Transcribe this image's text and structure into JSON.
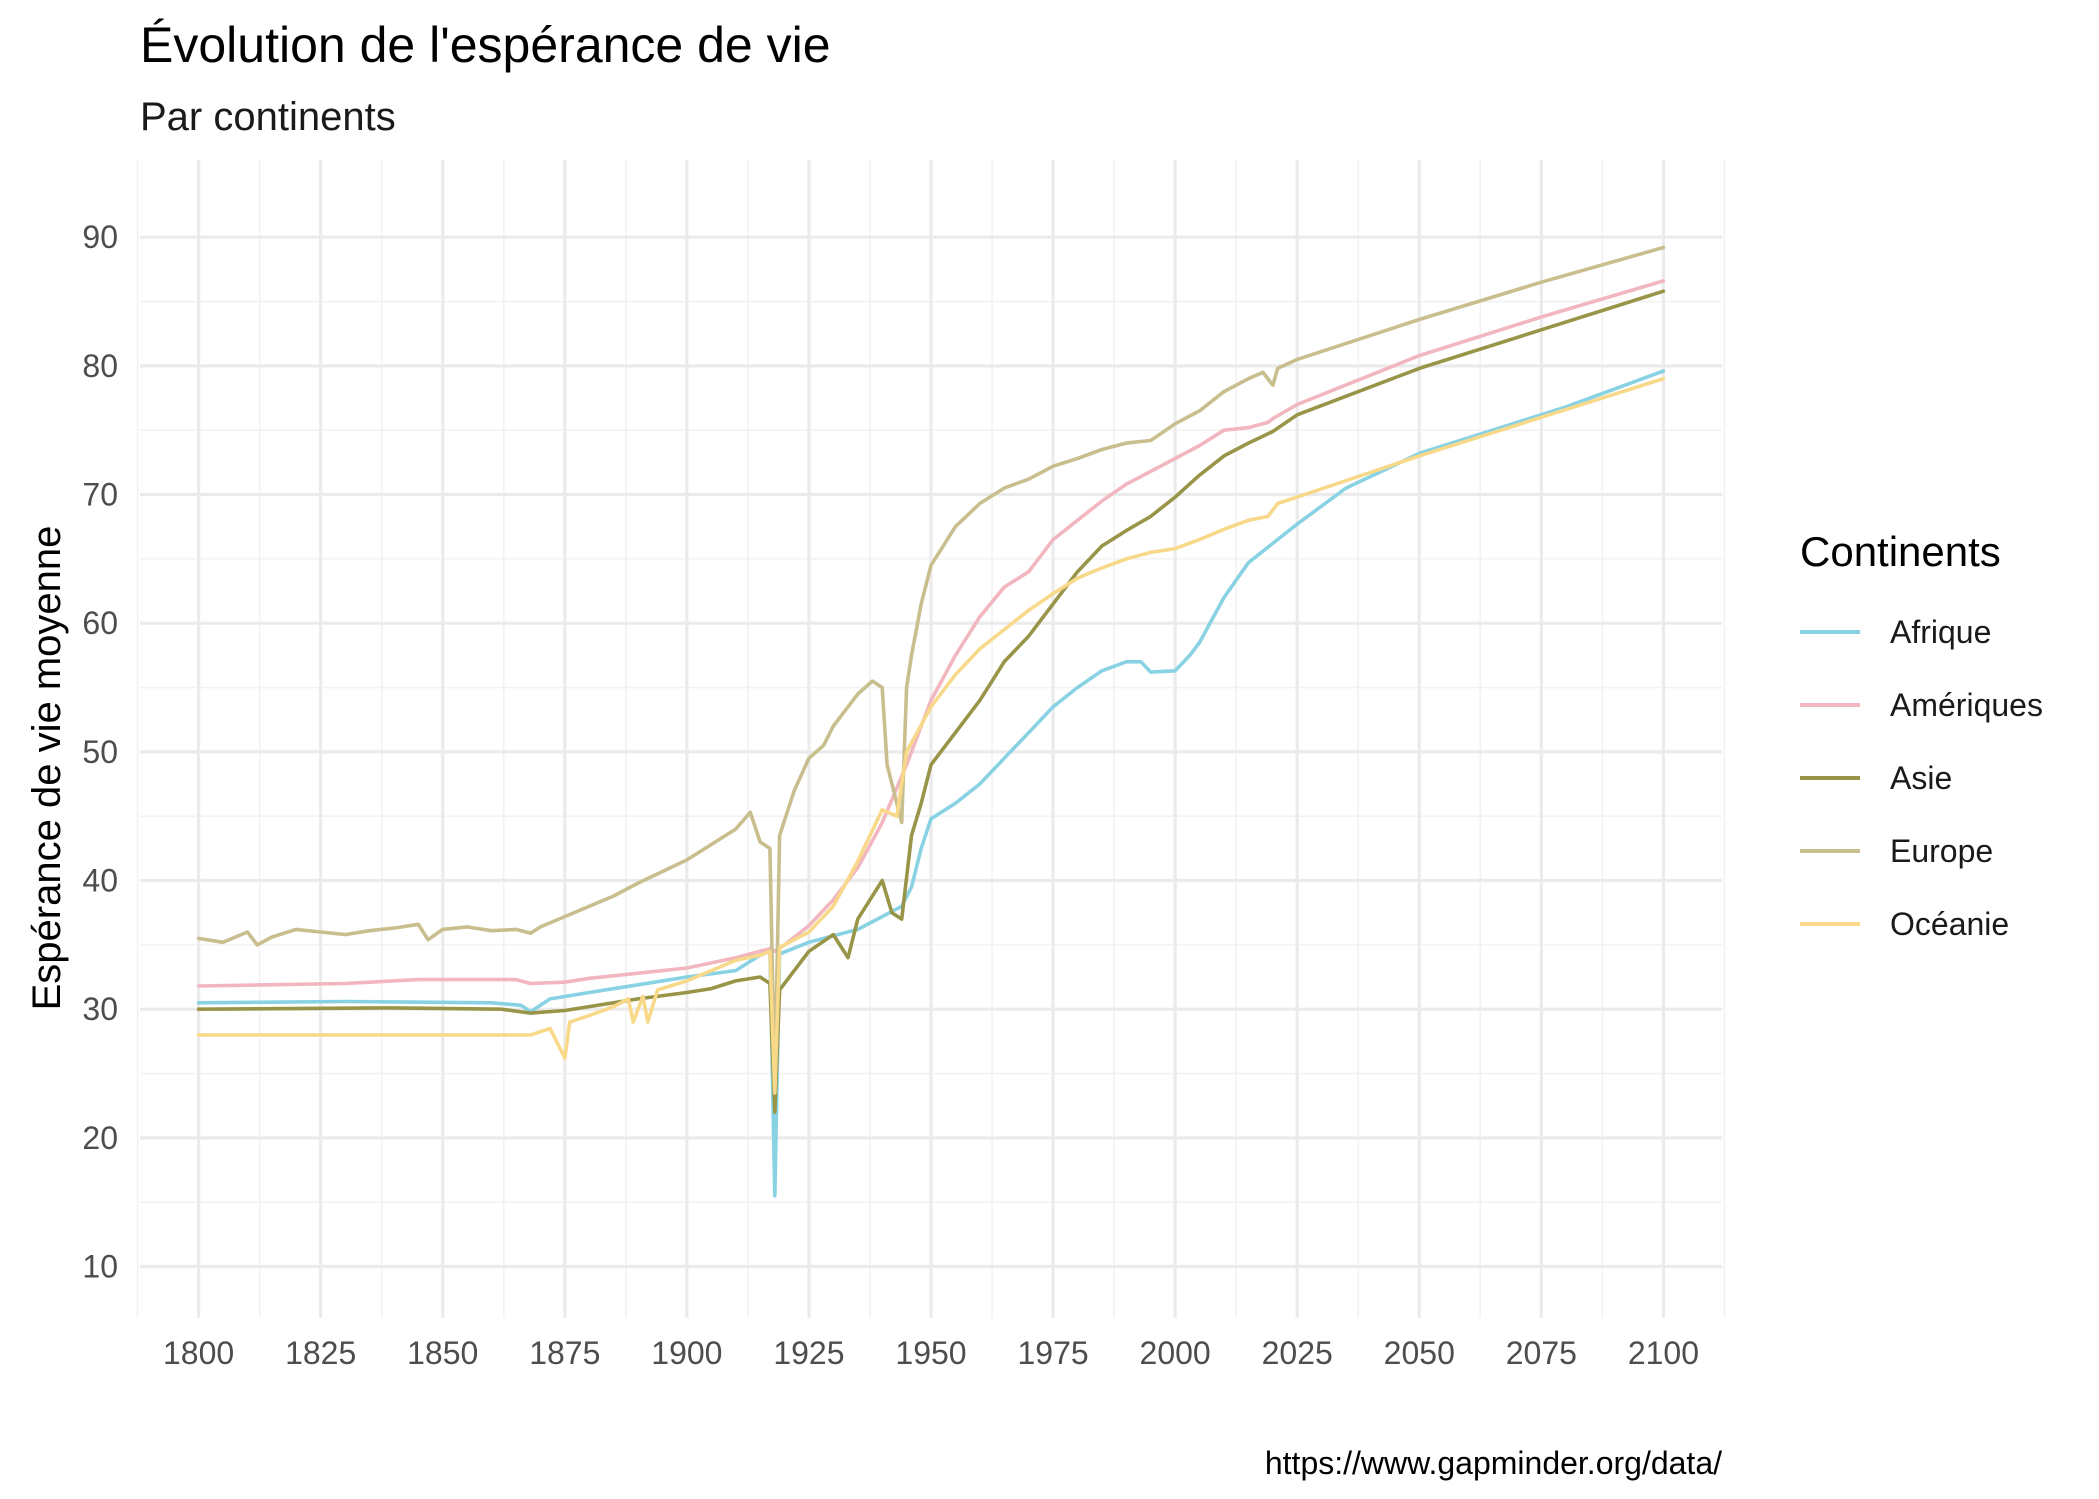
{
  "chart_data": {
    "type": "line",
    "title": "Évolution de l'espérance de vie",
    "subtitle": "Par continents",
    "xlabel": "",
    "ylabel": "Espérance de vie moyenne",
    "caption": "https://www.gapminder.org/data/",
    "xlim": [
      1788,
      2112
    ],
    "ylim": [
      6,
      96
    ],
    "x_ticks": [
      1800,
      1825,
      1850,
      1875,
      1900,
      1925,
      1950,
      1975,
      2000,
      2025,
      2050,
      2075,
      2100
    ],
    "y_ticks": [
      10,
      20,
      30,
      40,
      50,
      60,
      70,
      80,
      90
    ],
    "grid": true,
    "legend": {
      "title": "Continents",
      "position": "right"
    },
    "series": [
      {
        "name": "Afrique",
        "color": "#89D2E3",
        "points": [
          [
            1800,
            30.5
          ],
          [
            1830,
            30.6
          ],
          [
            1860,
            30.5
          ],
          [
            1866,
            30.3
          ],
          [
            1868,
            29.8
          ],
          [
            1872,
            30.8
          ],
          [
            1880,
            31.3
          ],
          [
            1890,
            31.9
          ],
          [
            1900,
            32.5
          ],
          [
            1910,
            33.0
          ],
          [
            1915,
            34.2
          ],
          [
            1917,
            34.5
          ],
          [
            1918,
            15.5
          ],
          [
            1919,
            34.3
          ],
          [
            1925,
            35.2
          ],
          [
            1935,
            36.2
          ],
          [
            1940,
            37.2
          ],
          [
            1944,
            38.0
          ],
          [
            1946,
            39.5
          ],
          [
            1948,
            42.5
          ],
          [
            1950,
            44.8
          ],
          [
            1955,
            46.0
          ],
          [
            1960,
            47.5
          ],
          [
            1965,
            49.5
          ],
          [
            1970,
            51.5
          ],
          [
            1975,
            53.5
          ],
          [
            1980,
            55.0
          ],
          [
            1985,
            56.3
          ],
          [
            1990,
            57.0
          ],
          [
            1993,
            57.0
          ],
          [
            1995,
            56.2
          ],
          [
            2000,
            56.3
          ],
          [
            2003,
            57.5
          ],
          [
            2005,
            58.5
          ],
          [
            2010,
            62.0
          ],
          [
            2015,
            64.7
          ],
          [
            2020,
            66.2
          ],
          [
            2025,
            67.7
          ],
          [
            2035,
            70.5
          ],
          [
            2050,
            73.2
          ],
          [
            2065,
            75.0
          ],
          [
            2080,
            76.8
          ],
          [
            2100,
            79.6
          ]
        ]
      },
      {
        "name": "Amériques",
        "color": "#F2B6BF",
        "points": [
          [
            1800,
            31.8
          ],
          [
            1830,
            32.0
          ],
          [
            1845,
            32.3
          ],
          [
            1865,
            32.3
          ],
          [
            1868,
            32.0
          ],
          [
            1875,
            32.1
          ],
          [
            1880,
            32.4
          ],
          [
            1890,
            32.8
          ],
          [
            1900,
            33.2
          ],
          [
            1910,
            34.0
          ],
          [
            1917,
            34.7
          ],
          [
            1918,
            34.5
          ],
          [
            1920,
            35.0
          ],
          [
            1925,
            36.5
          ],
          [
            1930,
            38.5
          ],
          [
            1935,
            41.0
          ],
          [
            1940,
            44.5
          ],
          [
            1945,
            49.0
          ],
          [
            1950,
            54.0
          ],
          [
            1955,
            57.5
          ],
          [
            1960,
            60.5
          ],
          [
            1965,
            62.8
          ],
          [
            1970,
            64.0
          ],
          [
            1975,
            66.5
          ],
          [
            1980,
            68.0
          ],
          [
            1985,
            69.5
          ],
          [
            1990,
            70.8
          ],
          [
            1995,
            71.8
          ],
          [
            2000,
            72.8
          ],
          [
            2005,
            73.8
          ],
          [
            2010,
            75.0
          ],
          [
            2015,
            75.2
          ],
          [
            2019,
            75.6
          ],
          [
            2020,
            75.9
          ],
          [
            2025,
            77.0
          ],
          [
            2050,
            80.8
          ],
          [
            2075,
            83.8
          ],
          [
            2100,
            86.6
          ]
        ]
      },
      {
        "name": "Asie",
        "color": "#999548",
        "points": [
          [
            1800,
            30.0
          ],
          [
            1840,
            30.1
          ],
          [
            1862,
            30.0
          ],
          [
            1868,
            29.7
          ],
          [
            1875,
            29.9
          ],
          [
            1880,
            30.2
          ],
          [
            1890,
            30.8
          ],
          [
            1900,
            31.3
          ],
          [
            1905,
            31.6
          ],
          [
            1910,
            32.2
          ],
          [
            1915,
            32.5
          ],
          [
            1917,
            32.0
          ],
          [
            1918,
            22.0
          ],
          [
            1919,
            31.5
          ],
          [
            1925,
            34.5
          ],
          [
            1930,
            35.8
          ],
          [
            1933,
            34.0
          ],
          [
            1935,
            37.0
          ],
          [
            1940,
            40.0
          ],
          [
            1942,
            37.5
          ],
          [
            1944,
            37.0
          ],
          [
            1946,
            43.5
          ],
          [
            1948,
            46.0
          ],
          [
            1950,
            49.0
          ],
          [
            1955,
            51.5
          ],
          [
            1960,
            54.0
          ],
          [
            1965,
            57.0
          ],
          [
            1970,
            59.0
          ],
          [
            1975,
            61.5
          ],
          [
            1980,
            64.0
          ],
          [
            1985,
            66.0
          ],
          [
            1990,
            67.2
          ],
          [
            1995,
            68.3
          ],
          [
            2000,
            69.8
          ],
          [
            2005,
            71.5
          ],
          [
            2010,
            73.0
          ],
          [
            2015,
            74.0
          ],
          [
            2020,
            74.9
          ],
          [
            2025,
            76.2
          ],
          [
            2050,
            79.8
          ],
          [
            2075,
            82.8
          ],
          [
            2100,
            85.8
          ]
        ]
      },
      {
        "name": "Europe",
        "color": "#C9BE8E",
        "points": [
          [
            1800,
            35.5
          ],
          [
            1805,
            35.2
          ],
          [
            1810,
            36.0
          ],
          [
            1812,
            35.0
          ],
          [
            1815,
            35.6
          ],
          [
            1820,
            36.2
          ],
          [
            1825,
            36.0
          ],
          [
            1830,
            35.8
          ],
          [
            1835,
            36.1
          ],
          [
            1840,
            36.3
          ],
          [
            1845,
            36.6
          ],
          [
            1847,
            35.4
          ],
          [
            1850,
            36.2
          ],
          [
            1855,
            36.4
          ],
          [
            1860,
            36.1
          ],
          [
            1865,
            36.2
          ],
          [
            1868,
            35.9
          ],
          [
            1870,
            36.4
          ],
          [
            1875,
            37.2
          ],
          [
            1880,
            38.0
          ],
          [
            1885,
            38.8
          ],
          [
            1890,
            39.8
          ],
          [
            1895,
            40.7
          ],
          [
            1900,
            41.6
          ],
          [
            1905,
            42.8
          ],
          [
            1910,
            44.0
          ],
          [
            1913,
            45.3
          ],
          [
            1915,
            43.0
          ],
          [
            1917,
            42.5
          ],
          [
            1918,
            24.0
          ],
          [
            1919,
            43.5
          ],
          [
            1922,
            47.0
          ],
          [
            1925,
            49.5
          ],
          [
            1928,
            50.5
          ],
          [
            1930,
            52.0
          ],
          [
            1933,
            53.5
          ],
          [
            1935,
            54.5
          ],
          [
            1938,
            55.5
          ],
          [
            1940,
            55.0
          ],
          [
            1941,
            49.0
          ],
          [
            1944,
            44.5
          ],
          [
            1945,
            55.0
          ],
          [
            1946,
            57.5
          ],
          [
            1948,
            61.5
          ],
          [
            1950,
            64.5
          ],
          [
            1955,
            67.5
          ],
          [
            1960,
            69.3
          ],
          [
            1965,
            70.5
          ],
          [
            1970,
            71.2
          ],
          [
            1975,
            72.2
          ],
          [
            1980,
            72.8
          ],
          [
            1985,
            73.5
          ],
          [
            1990,
            74.0
          ],
          [
            1995,
            74.2
          ],
          [
            2000,
            75.5
          ],
          [
            2005,
            76.5
          ],
          [
            2010,
            78.0
          ],
          [
            2015,
            79.0
          ],
          [
            2018,
            79.5
          ],
          [
            2020,
            78.5
          ],
          [
            2021,
            79.8
          ],
          [
            2025,
            80.5
          ],
          [
            2050,
            83.6
          ],
          [
            2075,
            86.5
          ],
          [
            2100,
            89.2
          ]
        ]
      },
      {
        "name": "Océanie",
        "color": "#F8D98A",
        "points": [
          [
            1800,
            28.0
          ],
          [
            1868,
            28.0
          ],
          [
            1872,
            28.5
          ],
          [
            1875,
            26.2
          ],
          [
            1876,
            29.0
          ],
          [
            1880,
            29.5
          ],
          [
            1885,
            30.2
          ],
          [
            1888,
            30.8
          ],
          [
            1889,
            29.0
          ],
          [
            1891,
            31.0
          ],
          [
            1892,
            29.0
          ],
          [
            1894,
            31.5
          ],
          [
            1900,
            32.2
          ],
          [
            1905,
            33.0
          ],
          [
            1910,
            33.8
          ],
          [
            1915,
            34.2
          ],
          [
            1917,
            34.5
          ],
          [
            1918,
            23.5
          ],
          [
            1919,
            34.8
          ],
          [
            1925,
            36.0
          ],
          [
            1930,
            38.0
          ],
          [
            1935,
            41.5
          ],
          [
            1940,
            45.5
          ],
          [
            1943,
            45.0
          ],
          [
            1945,
            50.0
          ],
          [
            1950,
            53.5
          ],
          [
            1955,
            56.0
          ],
          [
            1960,
            58.0
          ],
          [
            1965,
            59.5
          ],
          [
            1970,
            61.0
          ],
          [
            1975,
            62.3
          ],
          [
            1980,
            63.5
          ],
          [
            1985,
            64.3
          ],
          [
            1990,
            65.0
          ],
          [
            1995,
            65.5
          ],
          [
            2000,
            65.8
          ],
          [
            2005,
            66.5
          ],
          [
            2010,
            67.3
          ],
          [
            2015,
            68.0
          ],
          [
            2019,
            68.3
          ],
          [
            2021,
            69.3
          ],
          [
            2025,
            69.8
          ],
          [
            2050,
            73.0
          ],
          [
            2075,
            76.0
          ],
          [
            2100,
            79.0
          ]
        ]
      }
    ]
  }
}
